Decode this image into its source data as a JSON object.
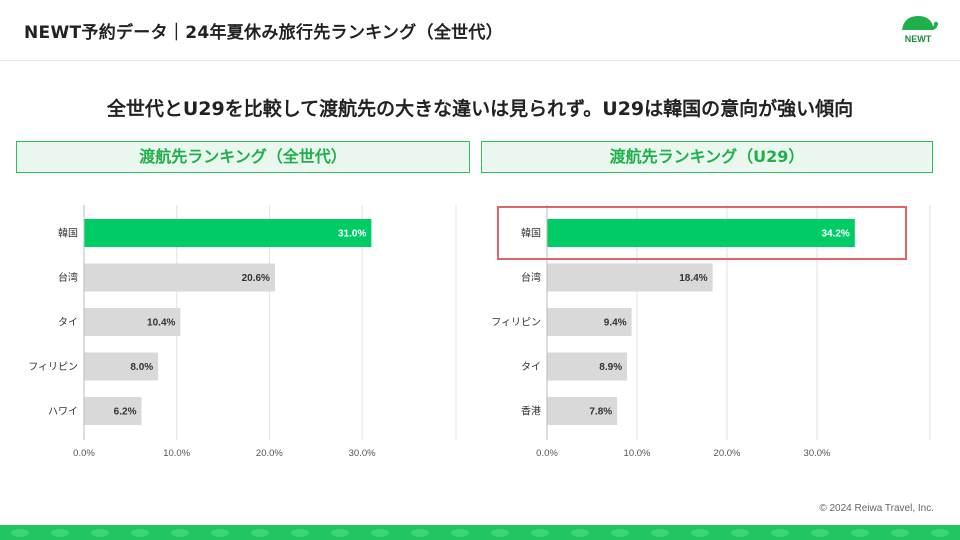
{
  "header": {
    "title": "NEWT予約データ｜24年夏休み旅行先ランキング（全世代）",
    "logo_text": "NEWT"
  },
  "headline": "全世代とU29を比較して渡航先の大きな違いは見られず。U29は韓国の意向が強い傾向",
  "footer": {
    "copyright": "© 2024 Reiwa Travel, Inc."
  },
  "colors": {
    "accent_green": "#00cc66",
    "bar_gray": "#d9d9d9",
    "highlight_border": "#e06666",
    "panel_bg": "#eaf7ee"
  },
  "chart_data": [
    {
      "type": "bar",
      "orientation": "horizontal",
      "title": "渡航先ランキング（全世代）",
      "categories": [
        "韓国",
        "台湾",
        "タイ",
        "フィリピン",
        "ハワイ"
      ],
      "values": [
        31.0,
        20.6,
        10.4,
        8.0,
        6.2
      ],
      "value_labels": [
        "31.0%",
        "20.6%",
        "10.4%",
        "8.0%",
        "6.2%"
      ],
      "highlight_index": 0,
      "xlim": [
        0,
        30
      ],
      "xticks": [
        "0.0%",
        "10.0%",
        "20.0%",
        "30.0%"
      ],
      "grid": true,
      "highlight_box": false
    },
    {
      "type": "bar",
      "orientation": "horizontal",
      "title": "渡航先ランキング（U29）",
      "categories": [
        "韓国",
        "台湾",
        "フィリピン",
        "タイ",
        "香港"
      ],
      "values": [
        34.2,
        18.4,
        9.4,
        8.9,
        7.8
      ],
      "value_labels": [
        "34.2%",
        "18.4%",
        "9.4%",
        "8.9%",
        "7.8%"
      ],
      "highlight_index": 0,
      "xlim": [
        0,
        30
      ],
      "xticks": [
        "0.0%",
        "10.0%",
        "20.0%",
        "30.0%"
      ],
      "grid": true,
      "highlight_box": true
    }
  ]
}
